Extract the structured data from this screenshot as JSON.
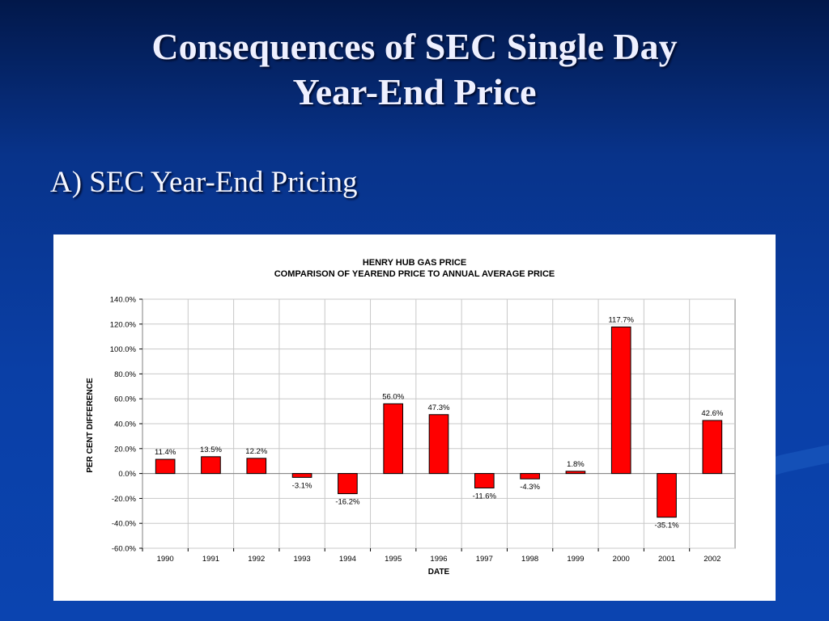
{
  "slide": {
    "title_line1": "Consequences of SEC Single Day",
    "title_line2": "Year-End Price",
    "bullet": "A) SEC Year-End Pricing"
  },
  "chart_data": {
    "type": "bar",
    "title": "HENRY HUB GAS PRICE",
    "subtitle": "COMPARISON OF YEAREND PRICE TO ANNUAL AVERAGE PRICE",
    "xlabel": "DATE",
    "ylabel": "PER CENT DIFFERENCE",
    "categories": [
      "1990",
      "1991",
      "1992",
      "1993",
      "1994",
      "1995",
      "1996",
      "1997",
      "1998",
      "1999",
      "2000",
      "2001",
      "2002"
    ],
    "values": [
      11.4,
      13.5,
      12.2,
      -3.1,
      -16.2,
      56.0,
      47.3,
      -11.6,
      -4.3,
      1.8,
      117.7,
      -35.1,
      42.6
    ],
    "data_labels": [
      "11.4%",
      "13.5%",
      "12.2%",
      "-3.1%",
      "-16.2%",
      "56.0%",
      "47.3%",
      "-11.6%",
      "-4.3%",
      "1.8%",
      "117.7%",
      "-35.1%",
      "42.6%"
    ],
    "ylim": [
      -60,
      140
    ],
    "yticks": [
      140,
      120,
      100,
      80,
      60,
      40,
      20,
      0,
      -20,
      -40,
      -60
    ],
    "ytick_labels": [
      "140.0%",
      "120.0%",
      "100.0%",
      "80.0%",
      "60.0%",
      "40.0%",
      "20.0%",
      "0.0%",
      "-20.0%",
      "-40.0%",
      "-60.0%"
    ],
    "bar_color": "#ff0000",
    "grid": true,
    "legend": "none"
  }
}
